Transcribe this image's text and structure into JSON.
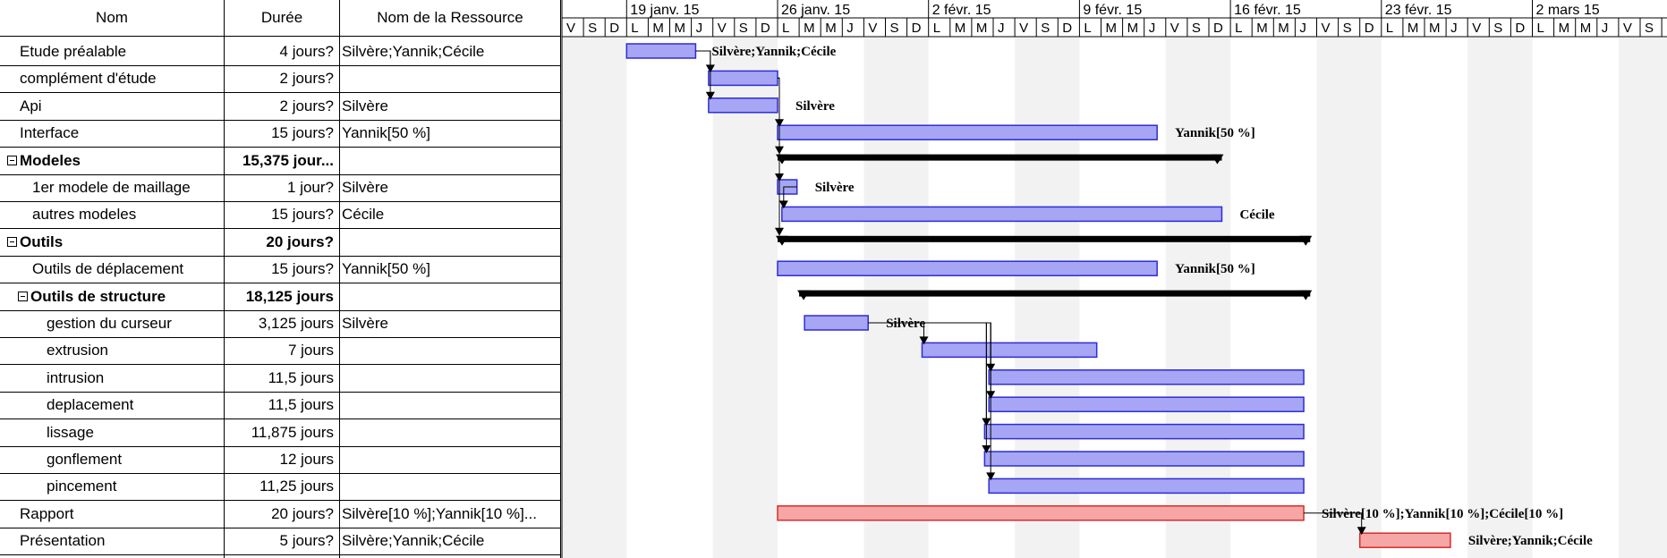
{
  "columns": {
    "name": "Nom",
    "duration": "Durée",
    "resources": "Nom de la Ressource"
  },
  "timeline": {
    "weeks": [
      "19 janv. 15",
      "26 janv. 15",
      "2 févr. 15",
      "9 févr. 15",
      "16 févr. 15",
      "23 févr. 15",
      "2 mars 15"
    ],
    "day_letters": [
      "V",
      "S",
      "D",
      "L",
      "M",
      "M",
      "J",
      "V",
      "S",
      "D",
      "L",
      "M",
      "M",
      "J",
      "V",
      "S",
      "D",
      "L",
      "M",
      "M",
      "J",
      "V",
      "S",
      "D",
      "L",
      "M",
      "M",
      "J",
      "V",
      "S",
      "D",
      "L",
      "M",
      "M",
      "J",
      "V",
      "S",
      "D",
      "L",
      "M",
      "M",
      "J",
      "V",
      "S",
      "D",
      "L",
      "M",
      "M",
      "J",
      "V",
      "S",
      "D"
    ]
  },
  "tasks": [
    {
      "name": "Etude préalable",
      "duration": "4 jours?",
      "resources": "Silvère;Yannik;Cécile",
      "bar_label": "Silvère;Yannik;Cécile",
      "level": 0,
      "summary": false,
      "critical": false,
      "start": 3,
      "end": 6.2
    },
    {
      "name": "complément d'étude",
      "duration": "2 jours?",
      "resources": "",
      "bar_label": "",
      "level": 0,
      "summary": false,
      "critical": false,
      "start": 6.8,
      "end": 10
    },
    {
      "name": "Api",
      "duration": "2 jours?",
      "resources": "Silvère",
      "bar_label": "Silvère",
      "level": 0,
      "summary": false,
      "critical": false,
      "start": 6.8,
      "end": 10
    },
    {
      "name": "Interface",
      "duration": "15 jours?",
      "resources": "Yannik[50 %]",
      "bar_label": "Yannik[50 %]",
      "level": 0,
      "summary": false,
      "critical": false,
      "start": 10,
      "end": 27.6
    },
    {
      "name": "Modeles",
      "duration": "15,375 jour...",
      "resources": "",
      "bar_label": "",
      "level": 0,
      "summary": true,
      "critical": false,
      "start": 10,
      "end": 30.6
    },
    {
      "name": "1er modele de maillage",
      "duration": "1 jour?",
      "resources": "Silvère",
      "bar_label": "Silvère",
      "level": 1,
      "summary": false,
      "critical": false,
      "start": 10,
      "end": 10.9
    },
    {
      "name": "autres modeles",
      "duration": "15 jours?",
      "resources": "Cécile",
      "bar_label": "Cécile",
      "level": 1,
      "summary": false,
      "critical": false,
      "start": 10.2,
      "end": 30.6
    },
    {
      "name": "Outils",
      "duration": "20 jours?",
      "resources": "",
      "bar_label": "",
      "level": 0,
      "summary": true,
      "critical": false,
      "start": 10,
      "end": 34.7
    },
    {
      "name": "Outils de déplacement",
      "duration": "15 jours?",
      "resources": "Yannik[50 %]",
      "bar_label": "Yannik[50 %]",
      "level": 1,
      "summary": false,
      "critical": false,
      "start": 10,
      "end": 27.6
    },
    {
      "name": "Outils de structure",
      "duration": "18,125 jours",
      "resources": "",
      "bar_label": "",
      "level": 1,
      "summary": true,
      "critical": false,
      "start": 11,
      "end": 34.7
    },
    {
      "name": "gestion du curseur",
      "duration": "3,125 jours",
      "resources": "Silvère",
      "bar_label": "Silvère",
      "level": 2,
      "summary": false,
      "critical": false,
      "start": 11.25,
      "end": 14.2
    },
    {
      "name": "extrusion",
      "duration": "7 jours",
      "resources": "",
      "bar_label": "",
      "level": 2,
      "summary": false,
      "critical": false,
      "start": 16.7,
      "end": 24.8
    },
    {
      "name": "intrusion",
      "duration": "11,5 jours",
      "resources": "",
      "bar_label": "",
      "level": 2,
      "summary": false,
      "critical": false,
      "start": 19.8,
      "end": 34.4
    },
    {
      "name": "deplacement",
      "duration": "11,5 jours",
      "resources": "",
      "bar_label": "",
      "level": 2,
      "summary": false,
      "critical": false,
      "start": 19.8,
      "end": 34.4
    },
    {
      "name": "lissage",
      "duration": "11,875 jours",
      "resources": "",
      "bar_label": "",
      "level": 2,
      "summary": false,
      "critical": false,
      "start": 19.6,
      "end": 34.4
    },
    {
      "name": "gonflement",
      "duration": "12 jours",
      "resources": "",
      "bar_label": "",
      "level": 2,
      "summary": false,
      "critical": false,
      "start": 19.6,
      "end": 34.4
    },
    {
      "name": "pincement",
      "duration": "11,25 jours",
      "resources": "",
      "bar_label": "",
      "level": 2,
      "summary": false,
      "critical": false,
      "start": 19.8,
      "end": 34.4
    },
    {
      "name": "Rapport",
      "duration": "20 jours?",
      "resources": "Silvère[10 %];Yannik[10 %]...",
      "bar_label": "Silvère[10 %];Yannik[10 %];Cécile[10 %]",
      "level": 0,
      "summary": false,
      "critical": true,
      "start": 10,
      "end": 34.4
    },
    {
      "name": "Présentation",
      "duration": "5 jours?",
      "resources": "Silvère;Yannik;Cécile",
      "bar_label": "Silvère;Yannik;Cécile",
      "level": 0,
      "summary": false,
      "critical": true,
      "start": 37,
      "end": 41.2
    }
  ],
  "links": [
    {
      "from": 0,
      "to": 1
    },
    {
      "from": 0,
      "to": 2
    },
    {
      "from": 1,
      "to": 3
    },
    {
      "from": 1,
      "to": 4
    },
    {
      "from": 1,
      "to": 5
    },
    {
      "from": 5,
      "to": 6
    },
    {
      "from": 1,
      "to": 7
    },
    {
      "from": 10,
      "to": 11
    },
    {
      "from": 10,
      "to": 12
    },
    {
      "from": 10,
      "to": 13
    },
    {
      "from": 10,
      "to": 14
    },
    {
      "from": 10,
      "to": 15
    },
    {
      "from": 10,
      "to": 16
    },
    {
      "from": 17,
      "to": 18
    }
  ],
  "colors": {
    "bar_fill": "#a6a6f5",
    "bar_stroke": "#2d2dd6",
    "critical_fill": "#f7a6a6",
    "critical_stroke": "#d62d2d",
    "summary": "#000000",
    "weekend_shade": "#f2f2f2",
    "grid": "#000000"
  }
}
